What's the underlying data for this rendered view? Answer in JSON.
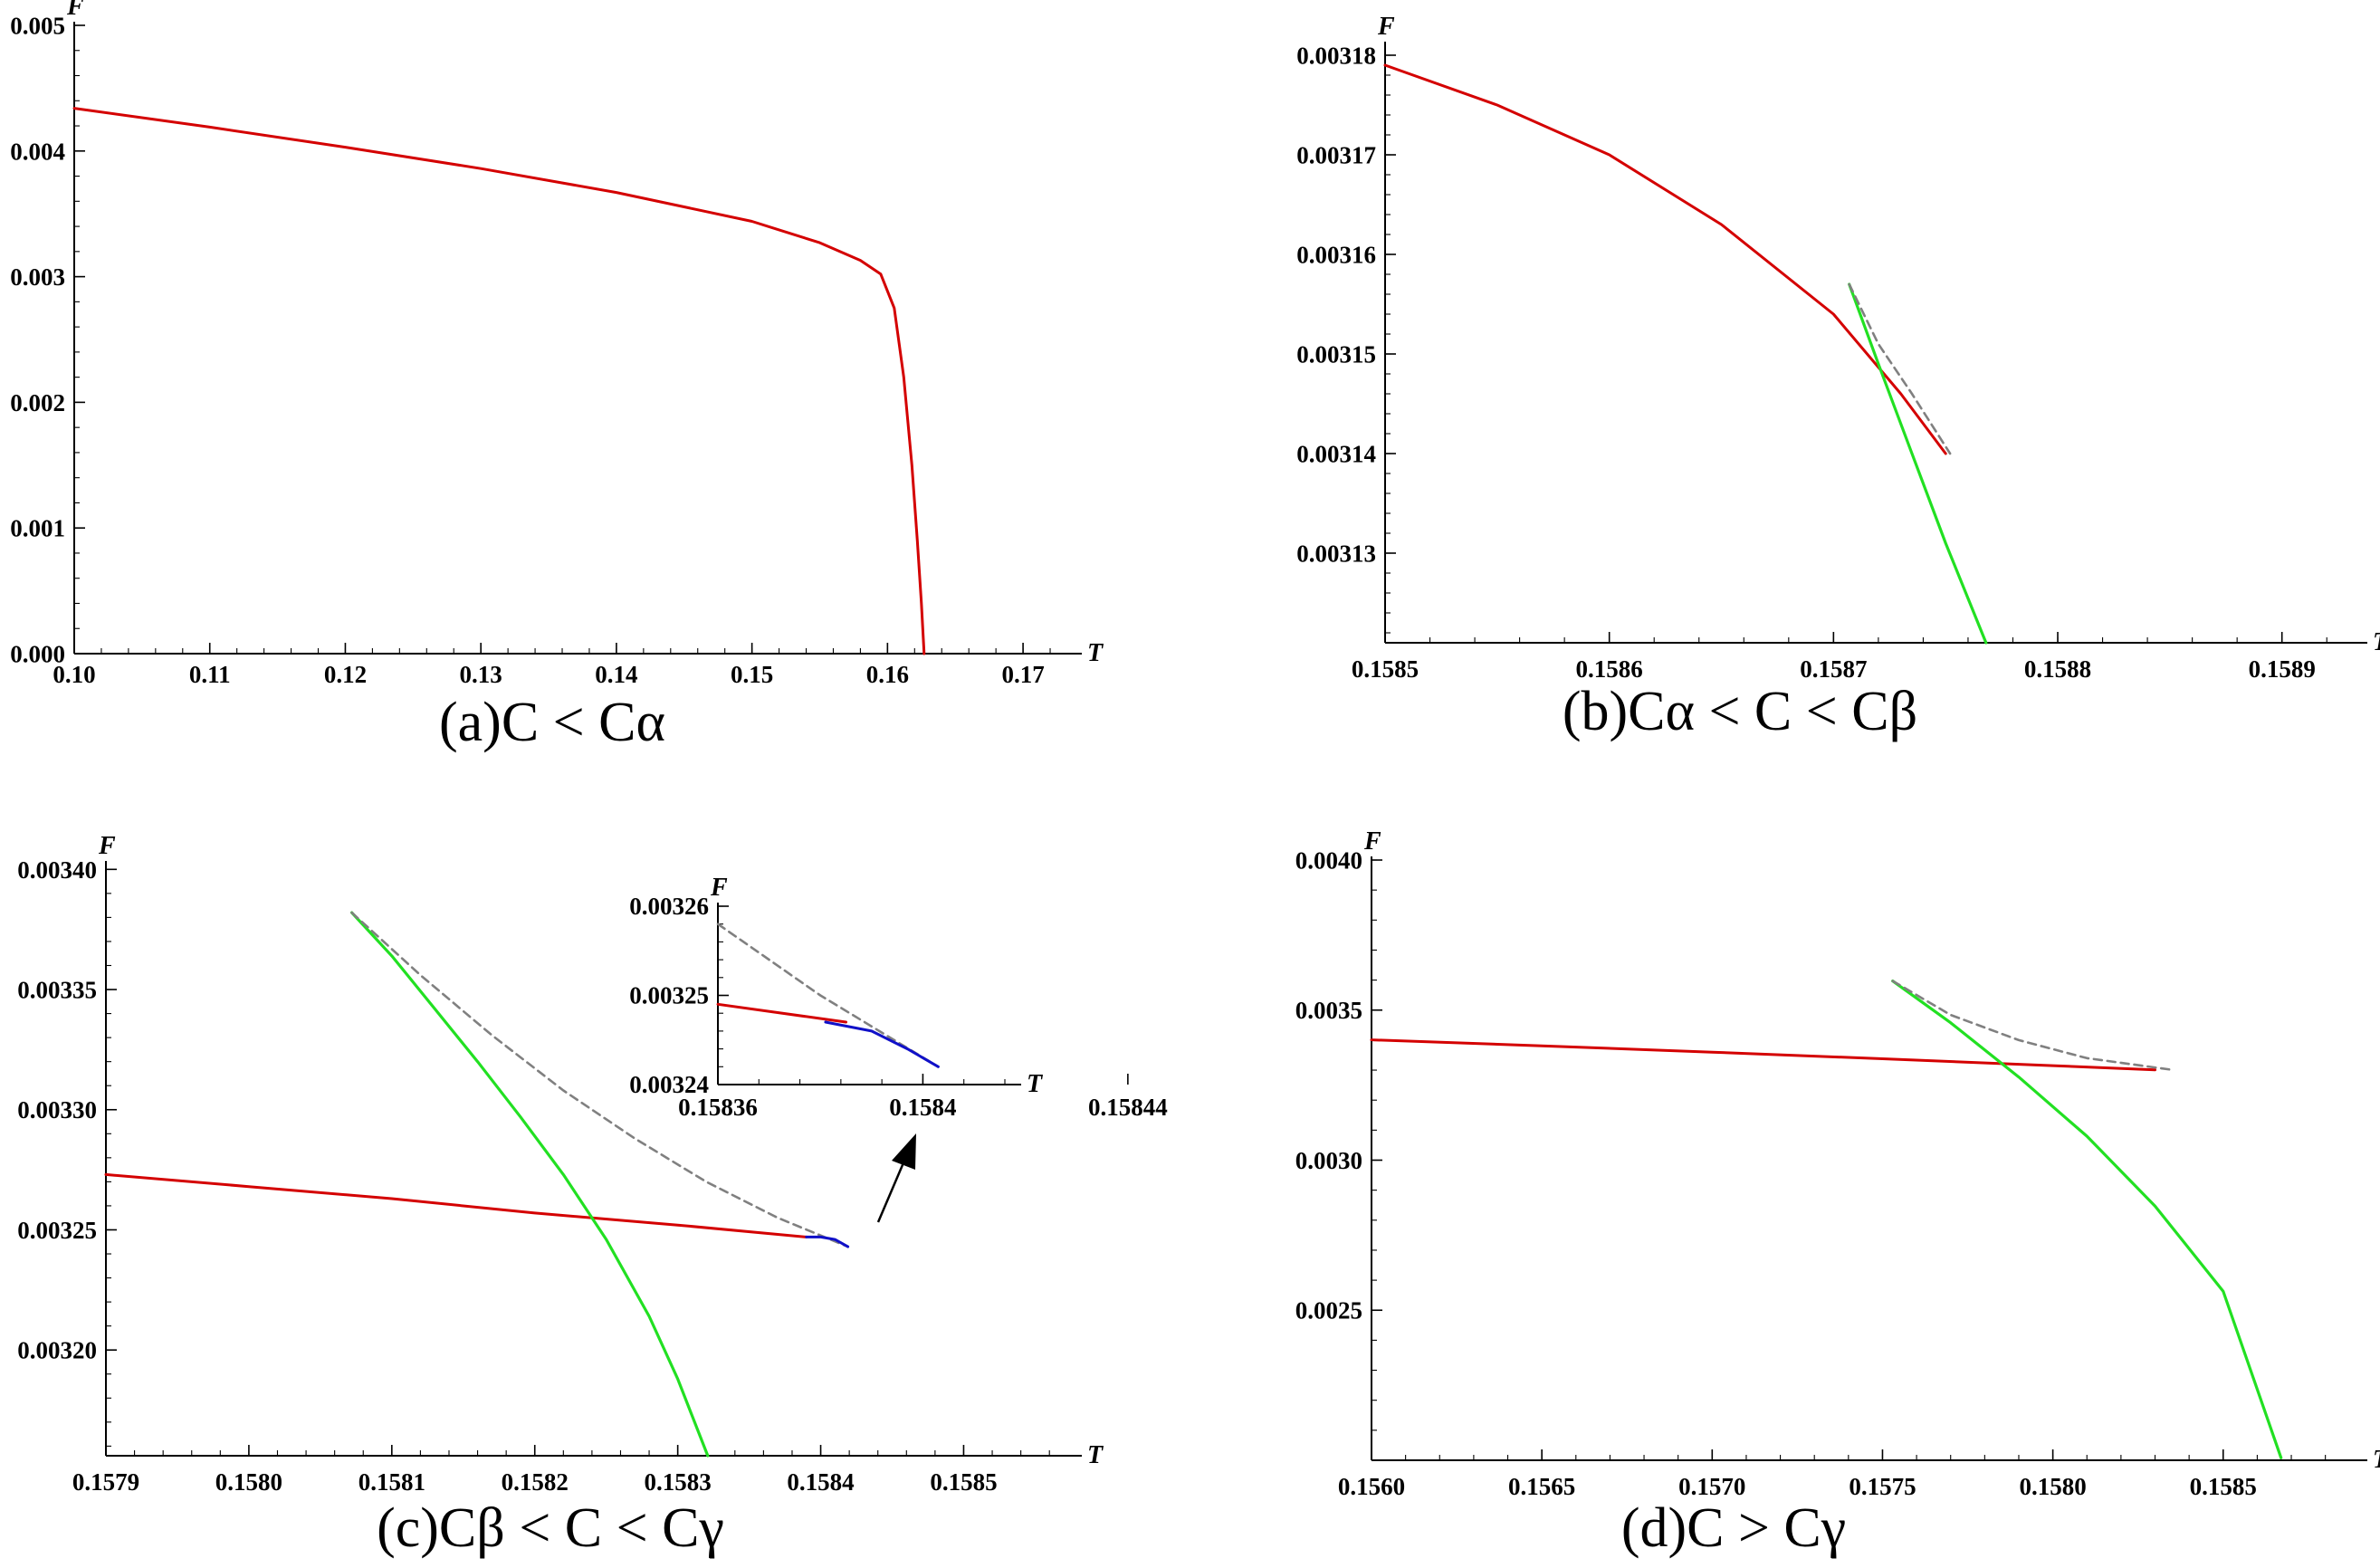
{
  "colors": {
    "stable_red": "#d40000",
    "green": "#22e022",
    "dashed_gray": "#808080",
    "blue": "#1010c8",
    "axis": "#000000"
  },
  "chart_data": [
    {
      "id": "a",
      "type": "line",
      "caption": "(a)C < Cα",
      "xlabel": "T",
      "ylabel": "F",
      "xlim": [
        0.1,
        0.173
      ],
      "ylim": [
        0.0,
        0.005
      ],
      "xticks": [
        0.1,
        0.11,
        0.12,
        0.13,
        0.14,
        0.15,
        0.16,
        0.17
      ],
      "xtick_labels": [
        "0.10",
        "0.11",
        "0.12",
        "0.13",
        "0.14",
        "0.15",
        "0.16",
        "0.17"
      ],
      "yticks": [
        0.0,
        0.001,
        0.002,
        0.003,
        0.004,
        0.005
      ],
      "ytick_labels": [
        "0.000",
        "0.001",
        "0.002",
        "0.003",
        "0.004",
        "0.005"
      ],
      "series": [
        {
          "style": "red",
          "x": [
            0.1,
            0.11,
            0.12,
            0.13,
            0.14,
            0.15,
            0.155,
            0.158,
            0.1595,
            0.1605,
            0.1612,
            0.1618,
            0.1622,
            0.1625,
            0.1627
          ],
          "y": [
            0.00434,
            0.00419,
            0.00403,
            0.00386,
            0.00367,
            0.00344,
            0.00327,
            0.00313,
            0.00302,
            0.00275,
            0.0022,
            0.0015,
            0.0009,
            0.0004,
            0.0
          ]
        }
      ]
    },
    {
      "id": "b",
      "type": "line",
      "caption": "(b)Cα < C < Cβ",
      "xlabel": "T",
      "ylabel": "F",
      "xlim": [
        0.1585,
        0.15893
      ],
      "ylim": [
        0.003121,
        0.003181
      ],
      "xticks": [
        0.1585,
        0.1586,
        0.1587,
        0.1588,
        0.1589
      ],
      "xtick_labels": [
        "0.1585",
        "0.1586",
        "0.1587",
        "0.1588",
        "0.1589"
      ],
      "yticks": [
        0.00313,
        0.00314,
        0.00315,
        0.00316,
        0.00317,
        0.00318
      ],
      "ytick_labels": [
        "0.00313",
        "0.00314",
        "0.00315",
        "0.00316",
        "0.00317",
        "0.00318"
      ],
      "series": [
        {
          "style": "red",
          "x": [
            0.1585,
            0.15855,
            0.1586,
            0.15865,
            0.1587,
            0.15873,
            0.15875
          ],
          "y": [
            0.003179,
            0.003175,
            0.00317,
            0.003163,
            0.003154,
            0.003146,
            0.00314
          ]
        },
        {
          "style": "green",
          "x": [
            0.158707,
            0.15872,
            0.158735,
            0.15875,
            0.158768
          ],
          "y": [
            0.003157,
            0.003149,
            0.00314,
            0.003131,
            0.003121
          ]
        },
        {
          "style": "dashed",
          "x": [
            0.158707,
            0.15872,
            0.158735,
            0.158752
          ],
          "y": [
            0.003157,
            0.003151,
            0.003146,
            0.00314
          ]
        }
      ]
    },
    {
      "id": "c",
      "type": "line",
      "caption": "(c)Cβ < C < Cγ",
      "xlabel": "T",
      "ylabel": "F",
      "xlim": [
        0.1579,
        0.15857
      ],
      "ylim": [
        0.003156,
        0.003402
      ],
      "xticks": [
        0.1579,
        0.158,
        0.1581,
        0.1582,
        0.1583,
        0.1584,
        0.1585
      ],
      "xtick_labels": [
        "0.1579",
        "0.1580",
        "0.1581",
        "0.1582",
        "0.1583",
        "0.1584",
        "0.1585"
      ],
      "yticks": [
        0.0032,
        0.00325,
        0.0033,
        0.00335,
        0.0034
      ],
      "ytick_labels": [
        "0.00320",
        "0.00325",
        "0.00330",
        "0.00335",
        "0.00340"
      ],
      "series": [
        {
          "style": "red",
          "x": [
            0.1579,
            0.158,
            0.1581,
            0.1582,
            0.1583,
            0.15839
          ],
          "y": [
            0.003273,
            0.003268,
            0.003263,
            0.003257,
            0.003252,
            0.003247
          ]
        },
        {
          "style": "green",
          "x": [
            0.158072,
            0.1581,
            0.15813,
            0.15816,
            0.15819,
            0.15822,
            0.15825,
            0.15828,
            0.1583,
            0.158321
          ],
          "y": [
            0.003382,
            0.003364,
            0.003342,
            0.00332,
            0.003297,
            0.003273,
            0.003246,
            0.003214,
            0.003188,
            0.003156
          ]
        },
        {
          "style": "dashed",
          "x": [
            0.158072,
            0.15812,
            0.15817,
            0.15822,
            0.15827,
            0.15832,
            0.15837,
            0.158419
          ],
          "y": [
            0.003382,
            0.003356,
            0.003331,
            0.003308,
            0.003288,
            0.00327,
            0.003255,
            0.003243
          ]
        },
        {
          "style": "blue",
          "x": [
            0.15839,
            0.1584,
            0.15841,
            0.158419
          ],
          "y": [
            0.003247,
            0.003247,
            0.003246,
            0.003243
          ]
        }
      ],
      "inset": {
        "xlabel": "T",
        "ylabel": "F",
        "xlim": [
          0.15836,
          0.158416
        ],
        "ylim": [
          0.00324,
          0.00326
        ],
        "xticks": [
          0.15836,
          0.1584,
          0.15844
        ],
        "xtick_labels": [
          "0.15836",
          "0.1584",
          "0.15844"
        ],
        "yticks": [
          0.00324,
          0.00325,
          0.00326
        ],
        "ytick_labels": [
          "0.00324",
          "0.00325",
          "0.00326"
        ],
        "series": [
          {
            "style": "red",
            "x": [
              0.15836,
              0.158385
            ],
            "y": [
              0.003249,
              0.003247
            ]
          },
          {
            "style": "dashed",
            "x": [
              0.15836,
              0.15838,
              0.158403
            ],
            "y": [
              0.003258,
              0.00325,
              0.003242
            ]
          },
          {
            "style": "blue",
            "x": [
              0.158381,
              0.15839,
              0.158397,
              0.158403
            ],
            "y": [
              0.003247,
              0.003246,
              0.003244,
              0.003242
            ]
          }
        ]
      }
    },
    {
      "id": "d",
      "type": "line",
      "caption": "(d)C > Cγ",
      "xlabel": "T",
      "ylabel": "F",
      "xlim": [
        0.156,
        0.15887
      ],
      "ylim": [
        0.002,
        0.004
      ],
      "xticks": [
        0.156,
        0.1565,
        0.157,
        0.1575,
        0.158,
        0.1585
      ],
      "xtick_labels": [
        "0.1560",
        "0.1565",
        "0.1570",
        "0.1575",
        "0.1580",
        "0.1585"
      ],
      "yticks": [
        0.0025,
        0.003,
        0.0035,
        0.004
      ],
      "ytick_labels": [
        "0.0025",
        "0.0030",
        "0.0035",
        "0.0040"
      ],
      "series": [
        {
          "style": "red",
          "x": [
            0.156,
            0.1565,
            0.157,
            0.1575,
            0.158,
            0.1583
          ],
          "y": [
            0.003401,
            0.003381,
            0.00336,
            0.003338,
            0.003315,
            0.003301
          ]
        },
        {
          "style": "green",
          "x": [
            0.15753,
            0.1577,
            0.1579,
            0.1581,
            0.1583,
            0.1585,
            0.15867
          ],
          "y": [
            0.003597,
            0.003458,
            0.003277,
            0.00308,
            0.002847,
            0.002563,
            0.002008
          ]
        },
        {
          "style": "dashed",
          "x": [
            0.15753,
            0.1577,
            0.1579,
            0.1581,
            0.15835
          ],
          "y": [
            0.003597,
            0.003484,
            0.0034,
            0.00334,
            0.003301
          ]
        }
      ]
    }
  ]
}
